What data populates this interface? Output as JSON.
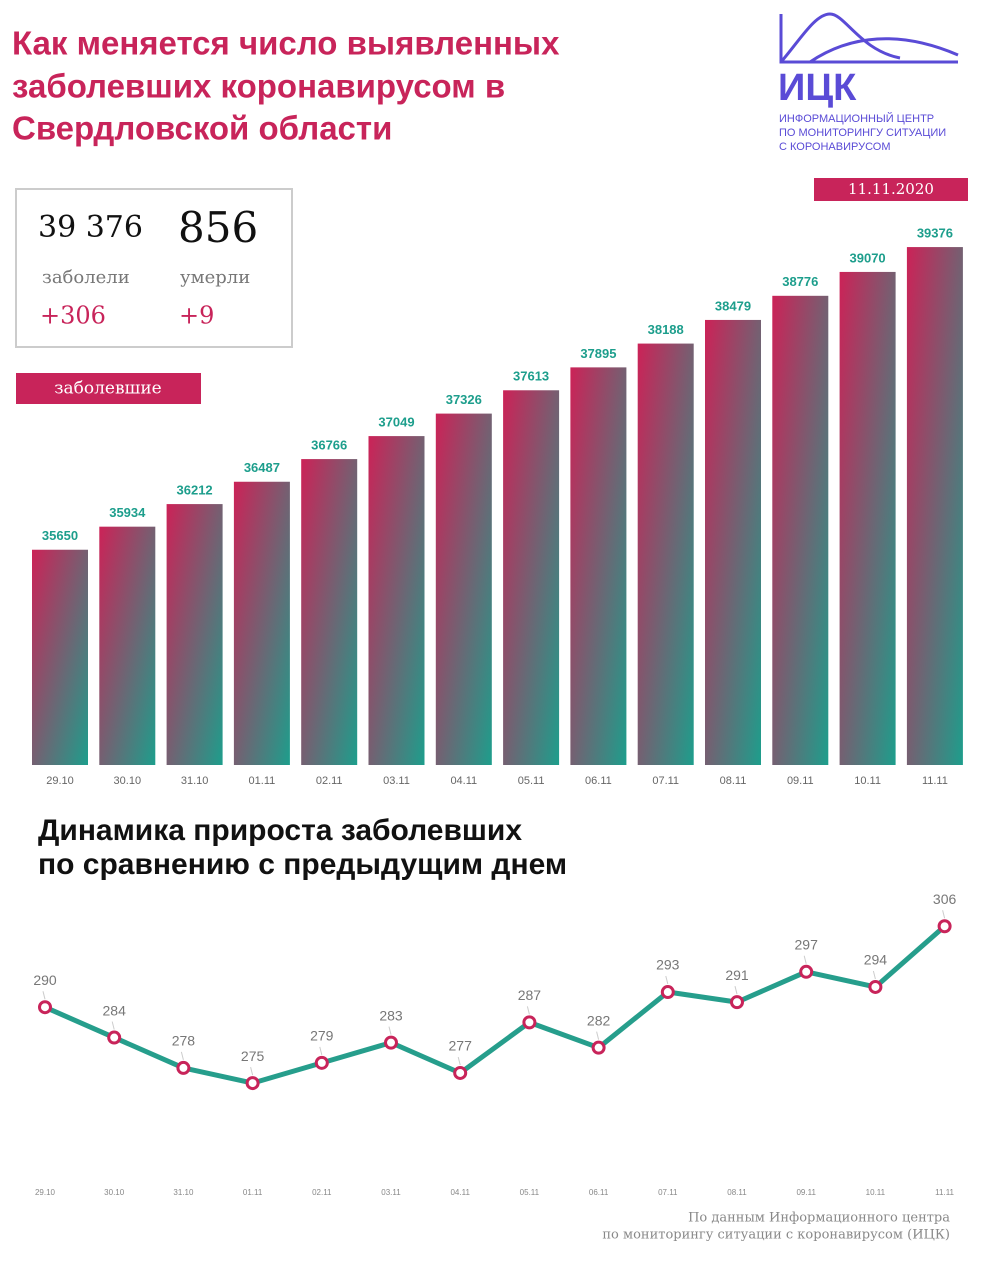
{
  "title_lines": [
    "Как меняется число выявленных",
    "заболевших коронавирусом в",
    "Свердловской области"
  ],
  "logo": {
    "name": "ИЦК",
    "lines": [
      "ИНФОРМАЦИОННЫЙ ЦЕНТР",
      "ПО МОНИТОРИНГУ СИТУАЦИИ",
      "С КОРОНАВИРУСОМ"
    ]
  },
  "date": "11.11.2020",
  "stats": {
    "cases": "39 376",
    "cases_label": "заболели",
    "cases_delta": "+306",
    "deaths": "856",
    "deaths_label": "умерли",
    "deaths_delta": "+9"
  },
  "chart_data": [
    {
      "type": "bar",
      "label": "заболевшие",
      "categories": [
        "29.10",
        "30.10",
        "31.10",
        "01.11",
        "02.11",
        "03.11",
        "04.11",
        "05.11",
        "06.11",
        "07.11",
        "08.11",
        "09.11",
        "10.11",
        "11.11"
      ],
      "values": [
        35650,
        35934,
        36212,
        36487,
        36766,
        37049,
        37326,
        37613,
        37895,
        38188,
        38479,
        38776,
        39070,
        39376
      ],
      "colors": [
        "#cc2257",
        "#1d9e8c"
      ],
      "ylim": [
        33000,
        39500
      ]
    },
    {
      "type": "line",
      "title_lines": [
        "Динамика прироста заболевших",
        "по сравнению с предыдущим днем"
      ],
      "categories": [
        "29.10",
        "30.10",
        "31.10",
        "01.11",
        "02.11",
        "03.11",
        "04.11",
        "05.11",
        "06.11",
        "07.11",
        "08.11",
        "09.11",
        "10.11",
        "11.11"
      ],
      "values": [
        290,
        284,
        278,
        275,
        279,
        283,
        277,
        287,
        282,
        293,
        291,
        297,
        294,
        306
      ],
      "color": "#269e8c",
      "marker_color": "#c8245a",
      "ylim": [
        260,
        310
      ]
    }
  ],
  "source_lines": [
    "По данным Информационного центра",
    "по мониторингу ситуации с коронавирусом (ИЦК)"
  ]
}
